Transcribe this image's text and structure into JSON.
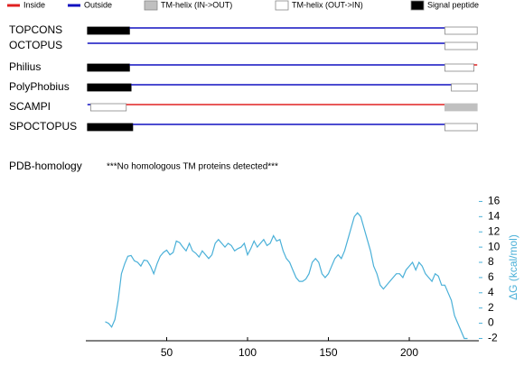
{
  "legend": [
    {
      "label": "Inside",
      "color": "#e02020",
      "shape": "line"
    },
    {
      "label": "Outside",
      "color": "#1010c0",
      "shape": "line"
    },
    {
      "label": "TM-helix (IN->OUT)",
      "color": "#c0c0c0",
      "shape": "box"
    },
    {
      "label": "TM-helix (OUT->IN)",
      "color": "#ffffff",
      "shape": "box"
    },
    {
      "label": "Signal peptide",
      "color": "#000000",
      "shape": "box"
    }
  ],
  "tracks": [
    {
      "name": "TOPCONS",
      "segments": [
        {
          "kind": "Signal peptide",
          "start": 1,
          "end": 27
        },
        {
          "kind": "Outside",
          "start": 27,
          "end": 222
        },
        {
          "kind": "TM-helix (OUT->IN)",
          "start": 222,
          "end": 242
        }
      ]
    },
    {
      "name": "OCTOPUS",
      "segments": [
        {
          "kind": "Outside",
          "start": 1,
          "end": 222
        },
        {
          "kind": "TM-helix (OUT->IN)",
          "start": 222,
          "end": 242
        }
      ]
    },
    {
      "name": "Philius",
      "segments": [
        {
          "kind": "Signal peptide",
          "start": 1,
          "end": 27
        },
        {
          "kind": "Outside",
          "start": 27,
          "end": 222
        },
        {
          "kind": "TM-helix (OUT->IN)",
          "start": 222,
          "end": 240
        },
        {
          "kind": "Inside",
          "start": 240,
          "end": 242
        }
      ]
    },
    {
      "name": "PolyPhobius",
      "segments": [
        {
          "kind": "Signal peptide",
          "start": 1,
          "end": 28
        },
        {
          "kind": "Outside",
          "start": 28,
          "end": 226
        },
        {
          "kind": "TM-helix (OUT->IN)",
          "start": 226,
          "end": 242
        }
      ]
    },
    {
      "name": "SCAMPI",
      "segments": [
        {
          "kind": "Outside",
          "start": 1,
          "end": 3
        },
        {
          "kind": "TM-helix (OUT->IN)",
          "start": 3,
          "end": 25
        },
        {
          "kind": "Inside",
          "start": 25,
          "end": 222
        },
        {
          "kind": "TM-helix (IN->OUT)",
          "start": 222,
          "end": 242
        }
      ]
    },
    {
      "name": "SPOCTOPUS",
      "segments": [
        {
          "kind": "Signal peptide",
          "start": 1,
          "end": 29
        },
        {
          "kind": "Outside",
          "start": 29,
          "end": 222
        },
        {
          "kind": "TM-helix (OUT->IN)",
          "start": 222,
          "end": 242
        }
      ]
    }
  ],
  "pdb_homology": {
    "label": "PDB-homology",
    "text": "***No homologous TM proteins detected***"
  },
  "chart_data": {
    "type": "line",
    "y_label": "ΔG (kcal/mol)",
    "color": "#4ab0d8",
    "xlim": [
      0,
      243
    ],
    "xticks": [
      50,
      100,
      150,
      200
    ],
    "ylim": [
      -2.3,
      17
    ],
    "yticks": [
      -2,
      0,
      2,
      4,
      6,
      8,
      10,
      12,
      14,
      16
    ],
    "x": [
      12,
      14,
      16,
      18,
      20,
      22,
      24,
      26,
      28,
      30,
      32,
      34,
      36,
      38,
      40,
      42,
      44,
      46,
      48,
      50,
      52,
      54,
      56,
      58,
      60,
      62,
      64,
      66,
      68,
      70,
      72,
      74,
      76,
      78,
      80,
      82,
      84,
      86,
      88,
      90,
      92,
      94,
      96,
      98,
      100,
      102,
      104,
      106,
      108,
      110,
      112,
      114,
      116,
      118,
      120,
      122,
      124,
      126,
      128,
      130,
      132,
      134,
      136,
      138,
      140,
      142,
      144,
      146,
      148,
      150,
      152,
      154,
      156,
      158,
      160,
      162,
      164,
      166,
      168,
      170,
      172,
      174,
      176,
      178,
      180,
      182,
      184,
      186,
      188,
      190,
      192,
      194,
      196,
      198,
      200,
      202,
      204,
      206,
      208,
      210,
      212,
      214,
      216,
      218,
      220,
      222,
      224,
      226,
      228,
      230,
      232,
      234,
      236
    ],
    "values": [
      0.2,
      0,
      -0.5,
      0.5,
      3,
      6.5,
      7.8,
      8.8,
      8.9,
      8.2,
      8,
      7.5,
      8.3,
      8.2,
      7.5,
      6.5,
      7.8,
      8.8,
      9.3,
      9.6,
      9,
      9.3,
      10.8,
      10.6,
      10,
      9.5,
      10.5,
      9.5,
      9.2,
      8.7,
      9.5,
      9,
      8.5,
      9,
      10.5,
      11,
      10.5,
      10,
      10.5,
      10.2,
      9.5,
      9.8,
      10,
      10.5,
      9,
      9.8,
      10.8,
      10,
      10.5,
      11,
      10.2,
      10.5,
      11.5,
      10.8,
      11,
      9.5,
      8.5,
      8,
      7,
      6,
      5.5,
      5.5,
      5.8,
      6.5,
      8,
      8.5,
      8,
      6.5,
      6,
      6.5,
      7.5,
      8.5,
      9,
      8.5,
      9.5,
      11,
      12.5,
      14,
      14.5,
      14,
      12.5,
      11,
      9.5,
      7.5,
      6.5,
      5,
      4.5,
      5,
      5.5,
      6,
      6.5,
      6.5,
      6,
      7,
      7.5,
      8,
      7,
      8,
      7.5,
      6.5,
      6,
      5.5,
      6.5,
      6.2,
      5,
      5,
      4,
      3,
      1,
      0,
      -1,
      -2,
      -2
    ]
  }
}
